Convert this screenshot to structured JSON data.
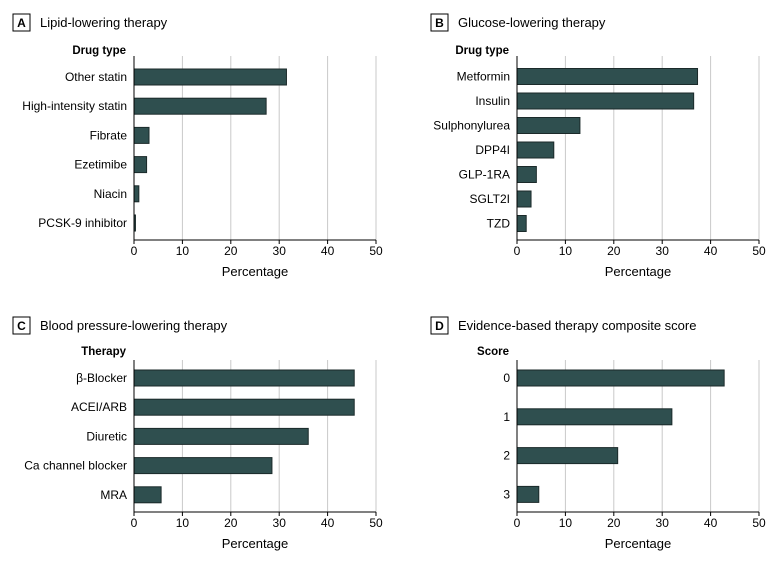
{
  "chart_data": [
    {
      "panel": "A",
      "title": "Lipid-lowering therapy",
      "type": "bar",
      "orientation": "horizontal",
      "category_header": "Drug type",
      "categories": [
        "Other statin",
        "High-intensity statin",
        "Fibrate",
        "Ezetimibe",
        "Niacin",
        "PCSK-9 inhibitor"
      ],
      "values": [
        31.5,
        27.3,
        3.1,
        2.6,
        1.0,
        0.3
      ],
      "xlabel": "Percentage",
      "xlim": [
        0,
        50
      ],
      "xticks": [
        0,
        10,
        20,
        30,
        40,
        50
      ],
      "grid": true
    },
    {
      "panel": "B",
      "title": "Glucose-lowering therapy",
      "type": "bar",
      "orientation": "horizontal",
      "category_header": "Drug type",
      "categories": [
        "Metformin",
        "Insulin",
        "Sulphonylurea",
        "DPP4I",
        "GLP-1RA",
        "SGLT2I",
        "TZD"
      ],
      "values": [
        37.3,
        36.5,
        13.0,
        7.6,
        4.0,
        2.9,
        1.9
      ],
      "xlabel": "Percentage",
      "xlim": [
        0,
        50
      ],
      "xticks": [
        0,
        10,
        20,
        30,
        40,
        50
      ],
      "grid": true
    },
    {
      "panel": "C",
      "title": "Blood pressure-lowering therapy",
      "type": "bar",
      "orientation": "horizontal",
      "category_header": "Therapy",
      "categories": [
        "β-Blocker",
        "ACEI/ARB",
        "Diuretic",
        "Ca channel blocker",
        "MRA"
      ],
      "values": [
        45.5,
        45.5,
        36.0,
        28.5,
        5.6
      ],
      "xlabel": "Percentage",
      "xlim": [
        0,
        50
      ],
      "xticks": [
        0,
        10,
        20,
        30,
        40,
        50
      ],
      "grid": true
    },
    {
      "panel": "D",
      "title": "Evidence-based therapy composite score",
      "type": "bar",
      "orientation": "horizontal",
      "category_header": "Score",
      "categories": [
        "0",
        "1",
        "2",
        "3"
      ],
      "values": [
        42.8,
        32.0,
        20.8,
        4.5
      ],
      "xlabel": "Percentage",
      "xlim": [
        0,
        50
      ],
      "xticks": [
        0,
        10,
        20,
        30,
        40,
        50
      ],
      "grid": true
    }
  ],
  "colors": {
    "bar_fill": "#2f4f4f",
    "bar_stroke": "#1b2a2a",
    "grid": "#c9c9c9"
  }
}
